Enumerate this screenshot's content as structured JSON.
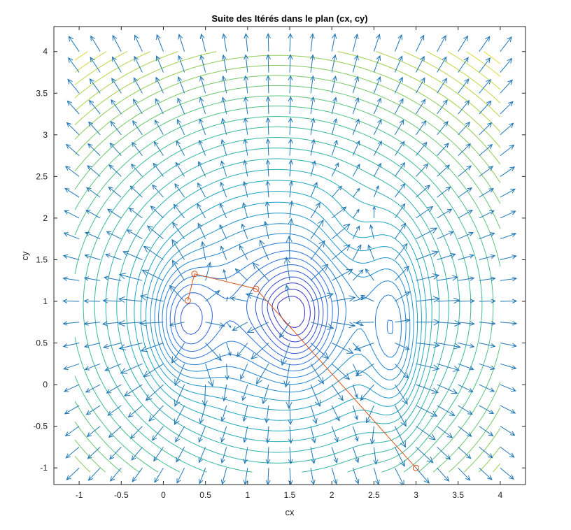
{
  "chart_data": {
    "type": "contour-quiver-line",
    "title": "Suite des Itérés dans le plan (cx, cy)",
    "xlabel": "cx",
    "ylabel": "cy",
    "xlim": [
      -1.3,
      4.3
    ],
    "ylim": [
      -1.2,
      4.3
    ],
    "xticks": [
      -1,
      -0.5,
      0,
      0.5,
      1,
      1.5,
      2,
      2.5,
      3,
      3.5,
      4
    ],
    "yticks": [
      -1,
      -0.5,
      0,
      0.5,
      1,
      1.5,
      2,
      2.5,
      3,
      3.5,
      4
    ],
    "xtick_labels": [
      "-1",
      "-0.5",
      "0",
      "0.5",
      "1",
      "1.5",
      "2",
      "2.5",
      "3",
      "3.5",
      "4"
    ],
    "ytick_labels": [
      "-1",
      "-0.5",
      "0",
      "0.5",
      "1",
      "1.5",
      "2",
      "2.5",
      "3",
      "3.5",
      "4"
    ],
    "grid": false,
    "contour_colormap": [
      "#3b1fbd",
      "#2a6fdc",
      "#1aa5c4",
      "#3fbf8f",
      "#9fcf4a",
      "#f2e13a"
    ],
    "quiver_color": "#1f77b4",
    "iterates": {
      "color": "#d95319",
      "marker": "circle",
      "x": [
        3.0,
        1.1,
        0.37,
        0.29
      ],
      "y": [
        -1.0,
        1.15,
        1.33,
        1.01
      ]
    }
  }
}
